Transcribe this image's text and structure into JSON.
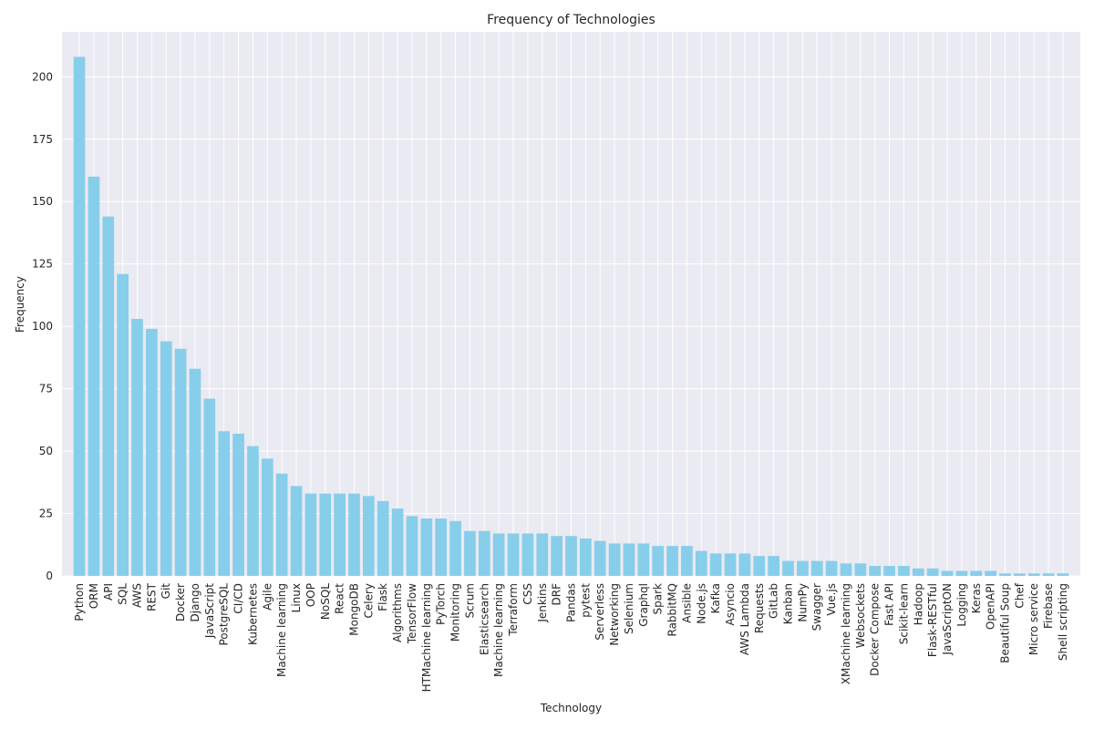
{
  "chart_data": {
    "type": "bar",
    "title": "Frequency of Technologies",
    "xlabel": "Technology",
    "ylabel": "Frequency",
    "ylim": [
      0,
      218
    ],
    "yticks": [
      0,
      25,
      50,
      75,
      100,
      125,
      150,
      175,
      200
    ],
    "grid": true,
    "bar_color": "#87ceeb",
    "background_color": "#eaeaf2",
    "grid_color": "#ffffff",
    "categories": [
      "Python",
      "ORM",
      "API",
      "SQL",
      "AWS",
      "REST",
      "Git",
      "Docker",
      "Django",
      "JavaScript",
      "PostgreSQL",
      "CI/CD",
      "Kubernetes",
      "Agile",
      "Machine learning",
      "Linux",
      "OOP",
      "NoSQL",
      "React",
      "MongoDB",
      "Celery",
      "Flask",
      "Algorithms",
      "TensorFlow",
      "HTMachine learning",
      "PyTorch",
      "Monitoring",
      "Scrum",
      "Elasticsearch",
      "Machine learning",
      "Terraform",
      "CSS",
      "Jenkins",
      "DRF",
      "Pandas",
      "pytest",
      "Serverless",
      "Networking",
      "Selenium",
      "Graphql",
      "Spark",
      "RabbitMQ",
      "Ansible",
      "Node.js",
      "Kafka",
      "Asyncio",
      "AWS Lambda",
      "Requests",
      "GitLab",
      "Kanban",
      "NumPy",
      "Swagger",
      "Vue.js",
      "XMachine learning",
      "Websockets",
      "Docker Compose",
      "Fast API",
      "Scikit-learn",
      "Hadoop",
      "Flask-RESTful",
      "JavaScriptON",
      "Logging",
      "Keras",
      "OpenAPI",
      "Beautiful Soup",
      "Chef",
      "Micro service",
      "Firebase",
      "Shell scripting"
    ],
    "values": [
      208,
      160,
      144,
      121,
      103,
      99,
      94,
      91,
      83,
      71,
      58,
      57,
      52,
      47,
      41,
      36,
      33,
      33,
      33,
      33,
      32,
      30,
      27,
      24,
      23,
      23,
      22,
      18,
      18,
      17,
      17,
      17,
      17,
      16,
      16,
      15,
      14,
      13,
      13,
      13,
      12,
      12,
      12,
      10,
      9,
      9,
      9,
      8,
      8,
      6,
      6,
      6,
      6,
      5,
      5,
      4,
      4,
      4,
      3,
      3,
      2,
      2,
      2,
      2,
      1,
      1,
      1,
      1,
      1
    ]
  }
}
